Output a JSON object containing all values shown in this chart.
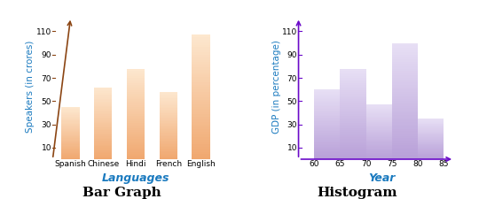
{
  "bar_categories": [
    "Spanish",
    "Chinese",
    "Hindi",
    "French",
    "English"
  ],
  "bar_values": [
    45,
    62,
    78,
    58,
    107
  ],
  "bar_color_light": "#fde8d0",
  "bar_color_dark": "#f0a870",
  "bar_ylabel": "Speakers (in crores)",
  "bar_xlabel": "Languages",
  "bar_yticks": [
    10,
    30,
    50,
    70,
    90,
    110
  ],
  "bar_title": "Bar Graph",
  "hist_edges": [
    60,
    65,
    70,
    75,
    80,
    85
  ],
  "hist_values": [
    60,
    78,
    47,
    100,
    35
  ],
  "hist_color_light": "#e8e0f5",
  "hist_color_dark": "#b8a0d8",
  "hist_ylabel": "GDP (in percentage)",
  "hist_xlabel": "Year",
  "hist_yticks": [
    10,
    30,
    50,
    70,
    90,
    110
  ],
  "hist_title": "Histogram",
  "axis_color_bar": "#8B4513",
  "axis_color_hist": "#6B0AC9",
  "label_color": "#1a7abf",
  "title_fontsize": 11,
  "label_fontsize": 7.5,
  "tick_fontsize": 6.5
}
